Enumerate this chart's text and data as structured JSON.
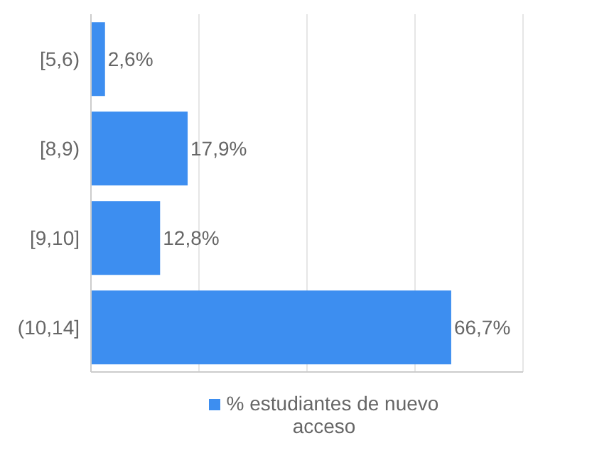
{
  "chart_data": {
    "type": "bar",
    "orientation": "horizontal",
    "categories": [
      "[5,6)",
      "[8,9)",
      "[9,10]",
      "(10,14]"
    ],
    "series": [
      {
        "name": "% estudiantes de nuevo acceso",
        "color": "#3d8ef0",
        "values": [
          2.6,
          17.9,
          12.8,
          66.7
        ],
        "value_labels": [
          "2,6%",
          "17,9%",
          "12,8%",
          "66,7%"
        ]
      }
    ],
    "xlim": [
      0,
      80
    ],
    "xticks": [
      {
        "value": 0,
        "label": null
      },
      {
        "value": 20,
        "label": null
      },
      {
        "value": 40,
        "label": null
      },
      {
        "value": 60,
        "label": null
      },
      {
        "value": 80,
        "label": null
      }
    ],
    "tick_labels": "y",
    "grid": "x",
    "legend": "bottom"
  }
}
